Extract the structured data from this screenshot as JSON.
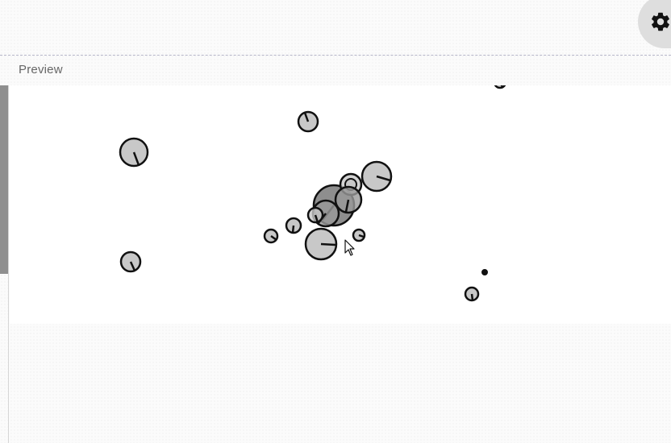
{
  "header": {
    "settings_icon": "gear-icon"
  },
  "preview": {
    "label": "Preview"
  },
  "colors": {
    "ball_fill": "#c8c8c8",
    "ball_fill_overlap": "#7a7a7a",
    "stroke": "#111111",
    "canvas_bg": "#ffffff",
    "scroll_thumb": "#8f8f8f"
  },
  "cursor_icon": "pointer-arrow-icon"
}
